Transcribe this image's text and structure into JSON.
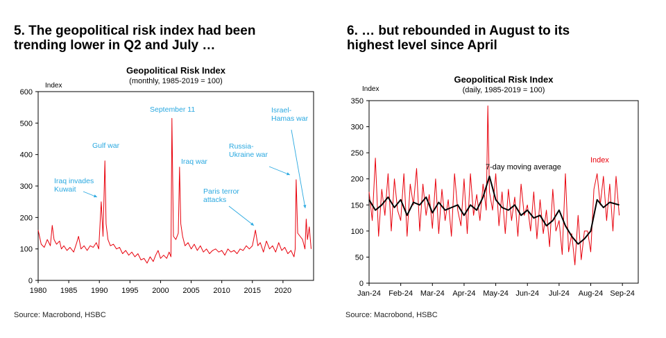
{
  "charts": {
    "left": {
      "heading_line1": "5. The geopolitical risk index had been",
      "heading_line2": "trending lower in Q2 and July …",
      "source": "Source: Macrobond, HSBC"
    },
    "right": {
      "heading_line1": "6. … but rebounded in August to its",
      "heading_line2": "highest level since April",
      "source": "Source: Macrobond, HSBC"
    }
  },
  "colors": {
    "series_red": "#e8000b",
    "annotation_blue": "#29a8e0",
    "moving_avg": "#000000",
    "axis": "#000000"
  },
  "chart_data": [
    {
      "type": "line",
      "title": "Geopolitical Risk Index",
      "subtitle": "(monthly, 1985-2019 = 100)",
      "ylabel": "Index",
      "xlabel": "",
      "xlim": [
        1980,
        2025
      ],
      "ylim": [
        0,
        600
      ],
      "x_ticks": [
        1980,
        1985,
        1990,
        1995,
        2000,
        2005,
        2010,
        2015,
        2020
      ],
      "y_ticks": [
        0,
        100,
        200,
        300,
        400,
        500,
        600
      ],
      "grid": false,
      "series": [
        {
          "color": "#e8000b",
          "x": [
            1980.0,
            1980.5,
            1981.0,
            1981.5,
            1982.0,
            1982.3,
            1982.6,
            1983.0,
            1983.5,
            1983.8,
            1984.2,
            1984.7,
            1985.2,
            1985.8,
            1986.3,
            1986.6,
            1987.0,
            1987.5,
            1988.0,
            1988.5,
            1989.0,
            1989.5,
            1989.9,
            1990.3,
            1990.6,
            1990.9,
            1991.1,
            1991.4,
            1991.8,
            1992.3,
            1992.8,
            1993.3,
            1993.8,
            1994.3,
            1994.8,
            1995.3,
            1995.8,
            1996.3,
            1996.8,
            1997.3,
            1997.8,
            1998.3,
            1998.8,
            1999.2,
            1999.6,
            2000.0,
            2000.5,
            2001.0,
            2001.4,
            2001.7,
            2001.85,
            2002.1,
            2002.5,
            2002.9,
            2003.1,
            2003.3,
            2003.6,
            2004.0,
            2004.5,
            2005.0,
            2005.5,
            2006.0,
            2006.5,
            2007.0,
            2007.5,
            2008.0,
            2008.5,
            2009.0,
            2009.5,
            2010.0,
            2010.5,
            2011.0,
            2011.5,
            2012.0,
            2012.5,
            2013.0,
            2013.5,
            2014.0,
            2014.5,
            2015.0,
            2015.5,
            2015.9,
            2016.3,
            2016.8,
            2017.3,
            2017.8,
            2018.3,
            2018.8,
            2019.3,
            2019.8,
            2020.3,
            2020.8,
            2021.3,
            2021.8,
            2022.0,
            2022.15,
            2022.4,
            2022.8,
            2023.2,
            2023.6,
            2023.8,
            2024.0,
            2024.3,
            2024.6
          ],
          "values": [
            160,
            115,
            105,
            130,
            110,
            175,
            130,
            115,
            125,
            100,
            110,
            95,
            105,
            90,
            120,
            140,
            100,
            110,
            95,
            110,
            105,
            120,
            100,
            250,
            140,
            380,
            180,
            130,
            110,
            115,
            100,
            105,
            85,
            95,
            80,
            90,
            75,
            85,
            65,
            70,
            55,
            75,
            60,
            80,
            95,
            70,
            80,
            70,
            90,
            75,
            515,
            140,
            130,
            150,
            360,
            180,
            140,
            110,
            120,
            100,
            115,
            95,
            110,
            90,
            100,
            85,
            95,
            100,
            90,
            95,
            80,
            100,
            90,
            95,
            85,
            100,
            95,
            110,
            100,
            110,
            160,
            110,
            120,
            90,
            125,
            100,
            110,
            90,
            120,
            95,
            105,
            85,
            95,
            75,
            100,
            320,
            150,
            140,
            130,
            100,
            195,
            130,
            170,
            100
          ]
        }
      ],
      "annotations": [
        "Iraq invades Kuwait",
        "Gulf war",
        "September 11",
        "Iraq war",
        "Russia-Ukraine war",
        "Paris terror attacks",
        "Israel-Hamas war"
      ],
      "annotation_lines": {
        "iraq_kuwait": [
          "Iraq invades",
          "Kuwait"
        ],
        "gulf_war": [
          "Gulf war"
        ],
        "sept11": [
          "September 11"
        ],
        "iraq_war": [
          "Iraq war"
        ],
        "russia": [
          "Russia-",
          "Ukraine war"
        ],
        "paris": [
          "Paris terror",
          "attacks"
        ],
        "israel": [
          "Israel-",
          "Hamas war"
        ]
      }
    },
    {
      "type": "line",
      "title": "Geopolitical Risk Index",
      "subtitle": "(daily, 1985-2019 = 100)",
      "ylabel": "Index",
      "xlabel": "",
      "xlim": [
        0,
        8.5
      ],
      "ylim": [
        0,
        350
      ],
      "x_ticks": [
        "Jan-24",
        "Feb-24",
        "Mar-24",
        "Apr-24",
        "May-24",
        "Jun-24",
        "Jul-24",
        "Aug-24",
        "Sep-24"
      ],
      "y_ticks": [
        0,
        50,
        100,
        150,
        200,
        250,
        300,
        350
      ],
      "grid": false,
      "series": [
        {
          "name": "Index",
          "color": "#e8000b",
          "x": [
            0.0,
            0.1,
            0.2,
            0.3,
            0.4,
            0.5,
            0.6,
            0.7,
            0.8,
            0.9,
            1.0,
            1.1,
            1.2,
            1.3,
            1.4,
            1.5,
            1.6,
            1.7,
            1.8,
            1.9,
            2.0,
            2.1,
            2.2,
            2.3,
            2.4,
            2.5,
            2.6,
            2.7,
            2.8,
            2.9,
            3.0,
            3.1,
            3.2,
            3.3,
            3.4,
            3.5,
            3.6,
            3.7,
            3.75,
            3.8,
            3.9,
            4.0,
            4.1,
            4.2,
            4.3,
            4.4,
            4.5,
            4.6,
            4.7,
            4.8,
            4.9,
            5.0,
            5.1,
            5.2,
            5.3,
            5.4,
            5.5,
            5.6,
            5.7,
            5.8,
            5.9,
            6.0,
            6.1,
            6.2,
            6.3,
            6.4,
            6.5,
            6.6,
            6.7,
            6.8,
            6.9,
            7.0,
            7.1,
            7.2,
            7.3,
            7.4,
            7.5,
            7.6,
            7.7,
            7.8,
            7.9
          ],
          "values": [
            175,
            120,
            240,
            90,
            180,
            130,
            210,
            100,
            200,
            140,
            120,
            210,
            90,
            190,
            150,
            220,
            100,
            190,
            130,
            170,
            105,
            200,
            95,
            180,
            120,
            160,
            90,
            210,
            140,
            110,
            200,
            95,
            210,
            130,
            170,
            120,
            190,
            140,
            340,
            175,
            140,
            210,
            110,
            175,
            95,
            180,
            120,
            165,
            90,
            190,
            130,
            150,
            100,
            175,
            85,
            160,
            95,
            140,
            70,
            180,
            100,
            120,
            55,
            210,
            60,
            95,
            35,
            130,
            45,
            100,
            100,
            60,
            180,
            210,
            150,
            205,
            120,
            190,
            100,
            205,
            130
          ]
        },
        {
          "name": "7-day moving average",
          "color": "#000000",
          "x": [
            0.0,
            0.2,
            0.4,
            0.6,
            0.8,
            1.0,
            1.2,
            1.4,
            1.6,
            1.8,
            2.0,
            2.2,
            2.4,
            2.6,
            2.8,
            3.0,
            3.2,
            3.4,
            3.6,
            3.8,
            4.0,
            4.2,
            4.4,
            4.6,
            4.8,
            5.0,
            5.2,
            5.4,
            5.6,
            5.8,
            6.0,
            6.2,
            6.4,
            6.6,
            6.8,
            7.0,
            7.2,
            7.4,
            7.6,
            7.9
          ],
          "values": [
            160,
            140,
            150,
            165,
            145,
            160,
            130,
            155,
            150,
            165,
            135,
            155,
            140,
            145,
            150,
            130,
            150,
            140,
            165,
            205,
            160,
            145,
            140,
            150,
            130,
            140,
            125,
            130,
            110,
            120,
            140,
            110,
            90,
            75,
            85,
            100,
            160,
            145,
            155,
            150
          ]
        }
      ],
      "annotations": [
        "7-day moving average",
        "Index"
      ]
    }
  ]
}
